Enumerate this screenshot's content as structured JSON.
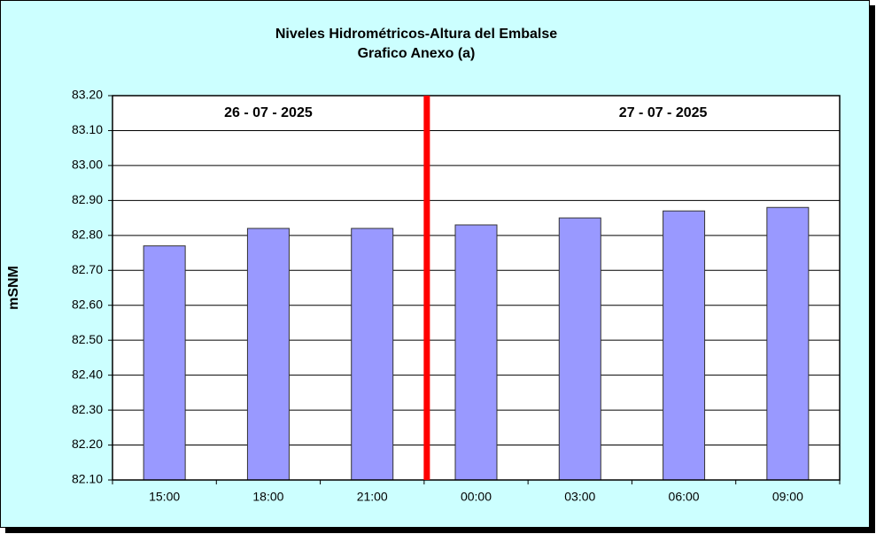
{
  "chart_data": {
    "type": "bar",
    "title": "Niveles Hidrométricos-Altura del Embalse",
    "subtitle": "Grafico Anexo (a)",
    "y_label": "mSNM",
    "annotations": [
      "26 - 07 - 2025",
      "27 - 07 - 2025"
    ],
    "categories": [
      "15:00",
      "18:00",
      "21:00",
      "00:00",
      "03:00",
      "06:00",
      "09:00"
    ],
    "values": [
      82.77,
      82.82,
      82.82,
      82.83,
      82.85,
      82.87,
      82.88
    ],
    "color": "#9999ff",
    "ylim": [
      82.1,
      83.2
    ],
    "yticks": [
      {
        "value": 82.1,
        "label": "82.10"
      },
      {
        "value": 82.2,
        "label": "82.20"
      },
      {
        "value": 82.3,
        "label": "82.30"
      },
      {
        "value": 82.4,
        "label": "82.40"
      },
      {
        "value": 82.5,
        "label": "82.50"
      },
      {
        "value": 82.6,
        "label": "82.60"
      },
      {
        "value": 82.7,
        "label": "82.70"
      },
      {
        "value": 82.8,
        "label": "82.80"
      },
      {
        "value": 82.9,
        "label": "82.90"
      },
      {
        "value": 83.0,
        "label": "83.00"
      },
      {
        "value": 83.1,
        "label": "83.10"
      },
      {
        "value": 83.2,
        "label": "83.20"
      }
    ],
    "grid": true
  }
}
